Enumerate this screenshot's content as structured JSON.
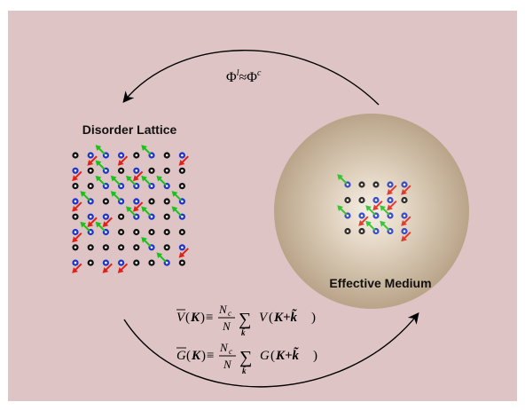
{
  "labels": {
    "left_title": "Disorder Lattice",
    "right_title": "Effective Medium"
  },
  "top_relation": {
    "lhs": "Φ",
    "lhs_sup": "l",
    "op": "≈",
    "rhs": "Φ",
    "rhs_sup": "c"
  },
  "equations": [
    {
      "func": "V",
      "arg": "K",
      "equiv": "≡",
      "num": "N",
      "num_sub": "c",
      "den": "N",
      "sum": "∑",
      "sum_sub": "k̃",
      "rhs_func": "V",
      "rhs_arg": "K+k̃"
    },
    {
      "func": "G",
      "arg": "K",
      "equiv": "≡",
      "num": "N",
      "num_sub": "c",
      "den": "N",
      "sum": "∑",
      "sum_sub": "k̃",
      "rhs_func": "G",
      "rhs_arg": "K+k̃"
    }
  ],
  "colors": {
    "background": "#dfc4c5",
    "sphere_center": "#f4ece2",
    "sphere_edge": "#b9a489",
    "atom_black": "#111111",
    "atom_blue": "#1d35c8",
    "spin_green": "#19c21b",
    "spin_red": "#e02118",
    "arrow": "#000000"
  }
}
